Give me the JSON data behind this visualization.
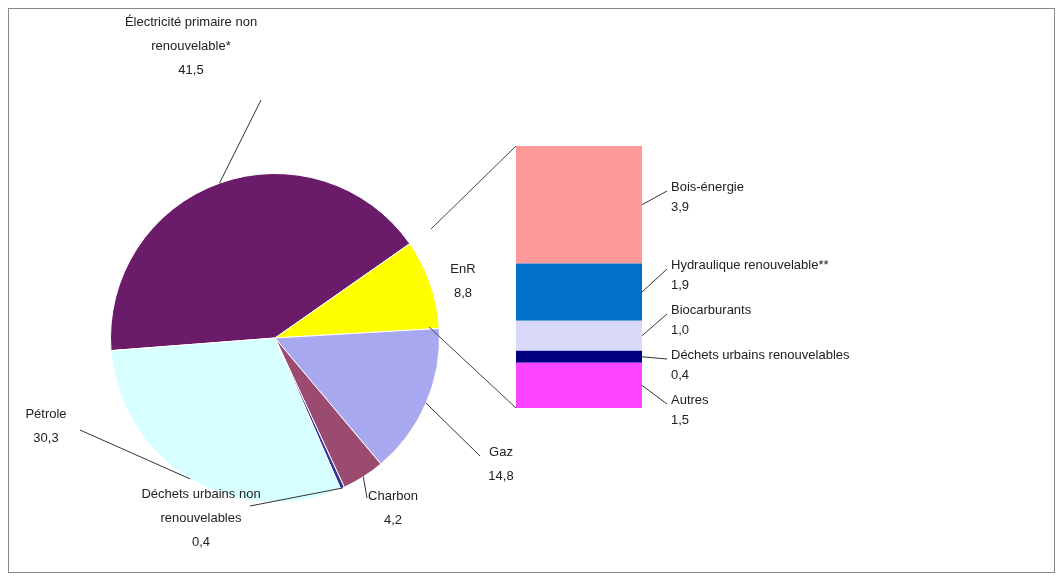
{
  "chart_data": [
    {
      "type": "pie",
      "categories": [
        "Électricité primaire non renouvelable*",
        "EnR",
        "Gaz",
        "Charbon",
        "Déchets urbains non renouvelables",
        "Pétrole"
      ],
      "values": [
        41.5,
        8.8,
        14.8,
        4.2,
        0.4,
        30.3
      ],
      "colors": [
        "#6a1b6a",
        "#ffff00",
        "#a8a8f0",
        "#9b4a70",
        "#333399",
        "#d8ffff"
      ],
      "value_labels": [
        "41,5",
        "8,8",
        "14,8",
        "4,2",
        "0,4",
        "30,3"
      ]
    },
    {
      "type": "bar",
      "stacked": true,
      "tick_labels": false,
      "categories": [
        null
      ],
      "series": [
        {
          "name": "Autres",
          "color": "#ff44ff",
          "values": [
            1.5
          ],
          "value_labels": [
            "1,5"
          ]
        },
        {
          "name": "Déchets urbains renouvelables",
          "color": "#000080",
          "values": [
            0.4
          ],
          "value_labels": [
            "0,4"
          ]
        },
        {
          "name": "Biocarburants",
          "color": "#d8d8f8",
          "values": [
            1.0
          ],
          "value_labels": [
            "1,0"
          ]
        },
        {
          "name": "Hydraulique renouvelable**",
          "color": "#0070c8",
          "values": [
            1.9
          ],
          "value_labels": [
            "1,9"
          ]
        },
        {
          "name": "Bois-énergie",
          "color": "#ff9999",
          "values": [
            3.9
          ],
          "value_labels": [
            "3,9"
          ]
        }
      ]
    }
  ]
}
